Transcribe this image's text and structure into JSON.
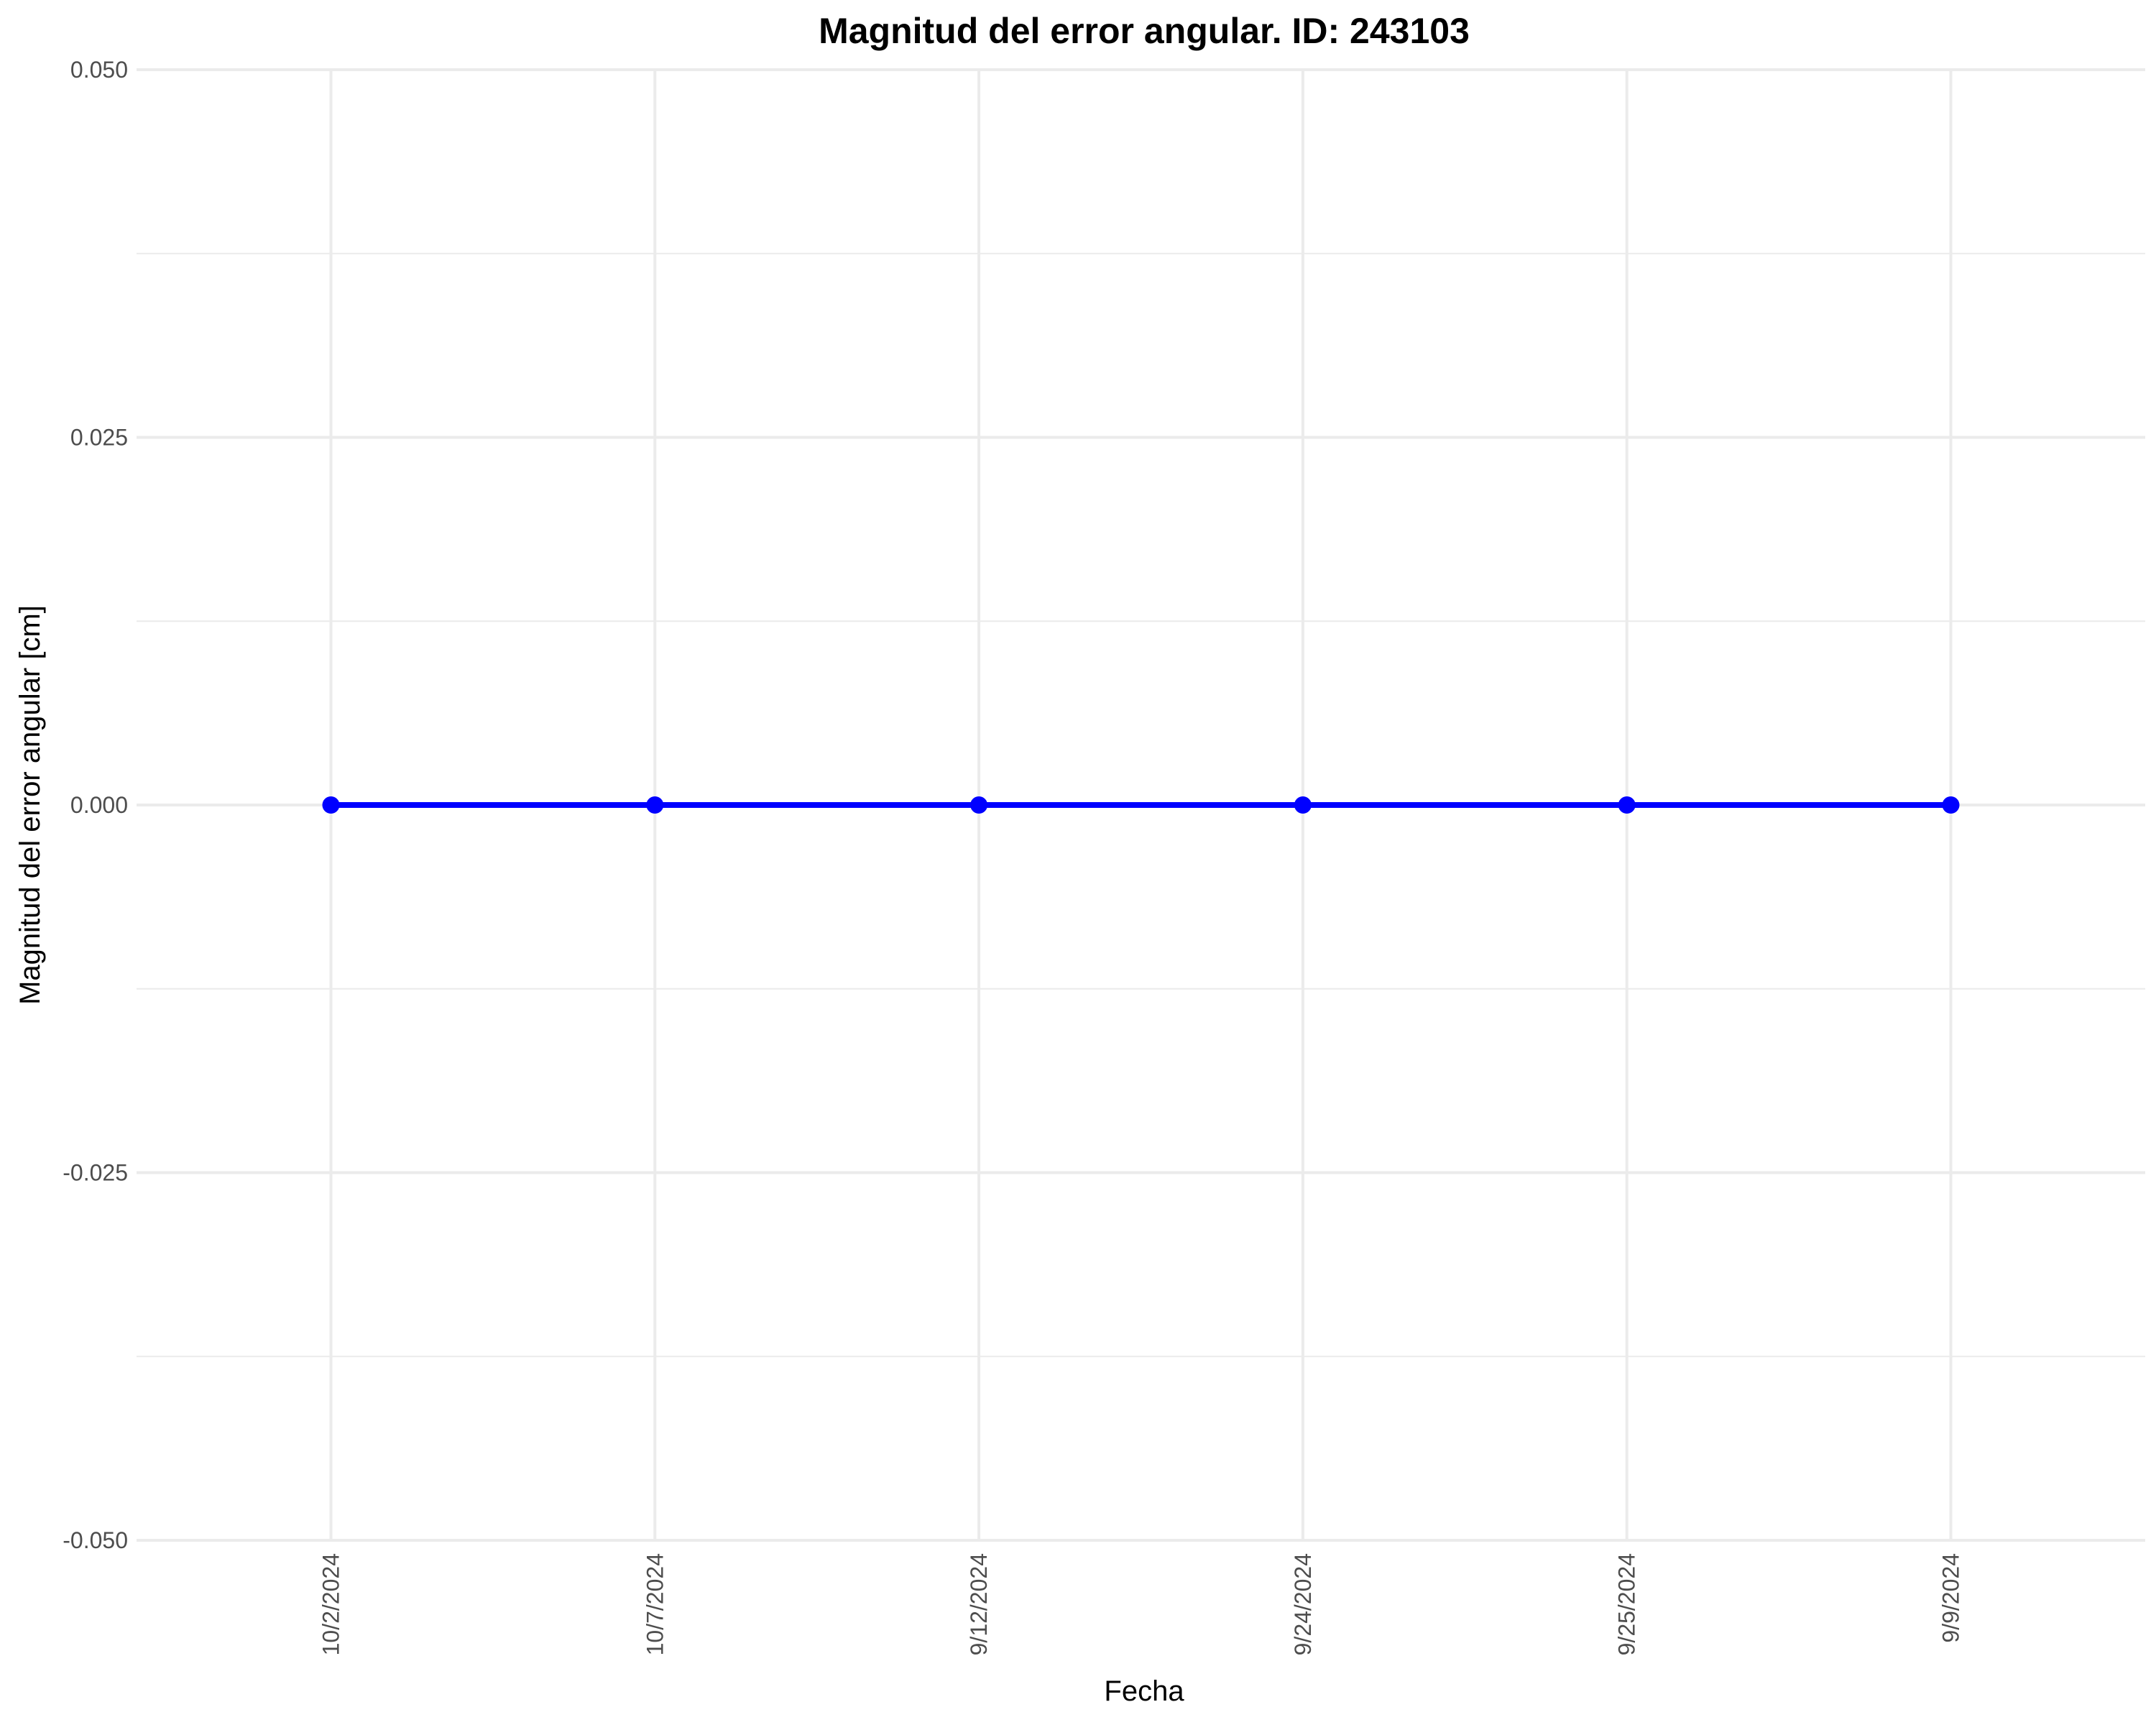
{
  "chart_data": {
    "type": "line",
    "title": "Magnitud del error angular. ID: 243103",
    "xlabel": "Fecha",
    "ylabel": "Magnitud del error angular [cm]",
    "categories": [
      "10/2/2024",
      "10/7/2024",
      "9/12/2024",
      "9/24/2024",
      "9/25/2024",
      "9/9/2024"
    ],
    "series": [
      {
        "values": [
          0,
          0,
          0,
          0,
          0,
          0
        ]
      }
    ],
    "ylim": [
      -0.05,
      0.05
    ],
    "yticks": [
      -0.05,
      -0.025,
      0,
      0.025,
      0.05
    ],
    "ytick_labels": [
      "-0.050",
      "-0.025",
      "0.000",
      "0.025",
      "0.050"
    ],
    "y_minor_ticks": [
      -0.0375,
      -0.0125,
      0.0125,
      0.0375
    ],
    "grid": true,
    "legend": "none",
    "colors": {
      "series": "#0000ff",
      "grid": "#ebebeb",
      "tick_text": "#4d4d4d",
      "background": "#ffffff"
    }
  }
}
